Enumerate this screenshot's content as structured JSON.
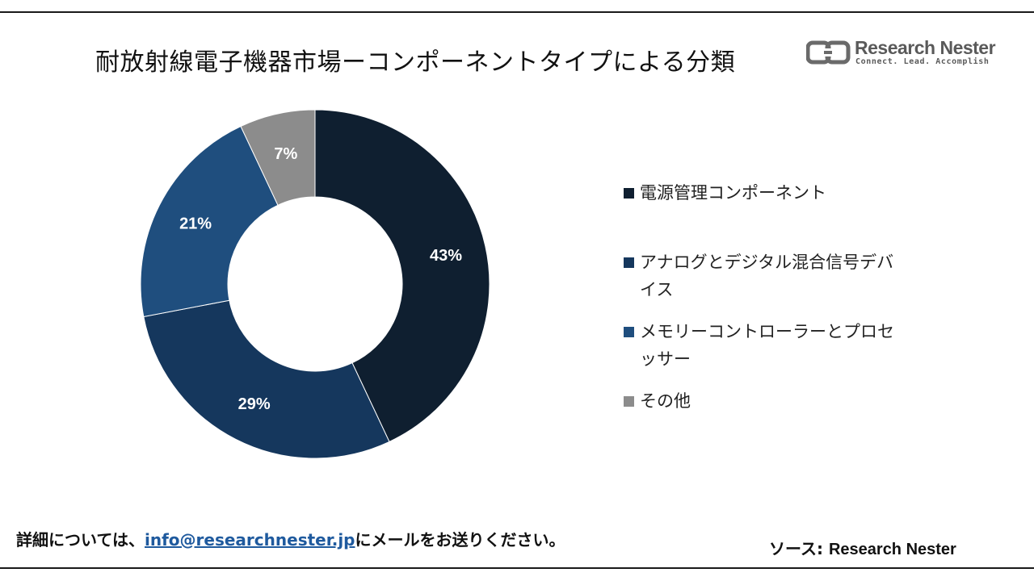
{
  "title": "耐放射線電子機器市場ーコンポーネントタイプによる分類",
  "logo": {
    "name": "Research Nester",
    "tagline": "Connect. Lead. Accomplish",
    "icon": "research-nester-logo-mark"
  },
  "chart_data": {
    "type": "pie",
    "style": "donut",
    "title": "耐放射線電子機器市場ーコンポーネントタイプによる分類",
    "categories": [
      "電源管理コンポーネント",
      "アナログとデジタル混合信号デバイス",
      "メモリーコントローラーとプロセッサー",
      "その他"
    ],
    "values": [
      43,
      29,
      21,
      7
    ],
    "value_labels": [
      "43%",
      "29%",
      "21%",
      "7%"
    ],
    "colors": [
      "#0f1f30",
      "#15375d",
      "#1f4e7e",
      "#8c8c8c"
    ],
    "legend_position": "right"
  },
  "legend": {
    "items": [
      {
        "label": "電源管理コンポーネント",
        "color": "#0f1f30"
      },
      {
        "label": "アナログとデジタル混合信号デバイス",
        "color": "#15375d"
      },
      {
        "label": "メモリーコントローラーとプロセッサー",
        "color": "#1f4e7e"
      },
      {
        "label": "その他",
        "color": "#8c8c8c"
      }
    ]
  },
  "footer": {
    "note_prefix": "詳細については、",
    "email": "info@researchnester.jp",
    "note_suffix": "にメールをお送りください。",
    "source_label": "ソース: ",
    "source_name": "Research Nester"
  }
}
